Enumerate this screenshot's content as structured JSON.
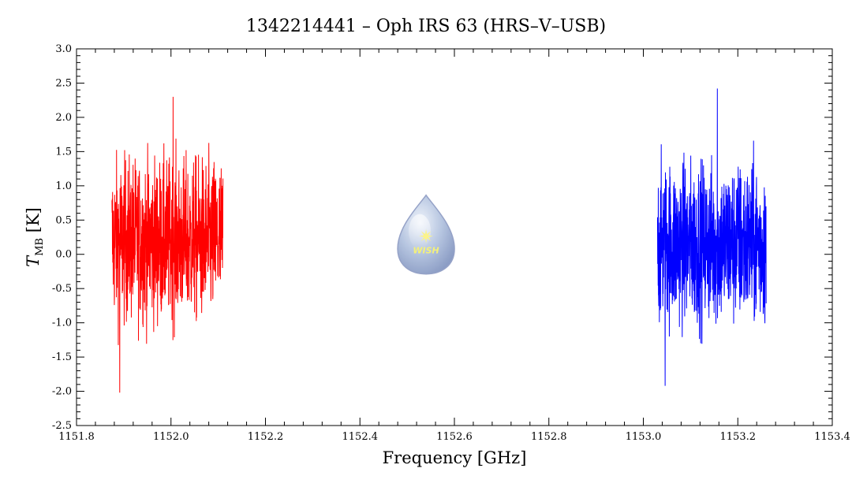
{
  "chart_data": {
    "type": "line",
    "title": "1342214441 – Oph IRS 63 (HRS–V–USB)",
    "xlabel": "Frequency [GHz]",
    "ylabel_main": "T",
    "ylabel_sub": "MB",
    "ylabel_unit": " [K]",
    "xlim": [
      1151.8,
      1153.4
    ],
    "ylim": [
      -2.5,
      3.0
    ],
    "x_ticks": [
      1151.8,
      1152.0,
      1152.2,
      1152.4,
      1152.6,
      1152.8,
      1153.0,
      1153.2,
      1153.4
    ],
    "x_tick_labels": [
      "1151.8",
      "1152.0",
      "1152.2",
      "1152.4",
      "1152.6",
      "1152.8",
      "1153.0",
      "1153.2",
      "1153.4"
    ],
    "y_ticks": [
      -2.5,
      -2.0,
      -1.5,
      -1.0,
      -0.5,
      0.0,
      0.5,
      1.0,
      1.5,
      2.0,
      2.5,
      3.0
    ],
    "y_tick_labels": [
      "-2.5",
      "-2.0",
      "-1.5",
      "-1.0",
      "-0.5",
      "0.0",
      "0.5",
      "1.0",
      "1.5",
      "2.0",
      "2.5",
      "3.0"
    ],
    "x_minor_step": 0.04,
    "y_minor_step": 0.1,
    "grid": false,
    "series": [
      {
        "color": "#ff0000",
        "x_range": [
          1151.875,
          1152.11
        ],
        "n_points": 700,
        "mean": 0.2,
        "approx_min": -2.02,
        "approx_max": 2.3
      },
      {
        "color": "#0000ff",
        "x_range": [
          1153.03,
          1153.26
        ],
        "n_points": 700,
        "mean": 0.15,
        "approx_min": -1.92,
        "approx_max": 2.42
      }
    ],
    "watermark": {
      "text": "WISH",
      "icon": "wish-droplet-logo",
      "x": 1152.54,
      "y": 0.15
    }
  }
}
